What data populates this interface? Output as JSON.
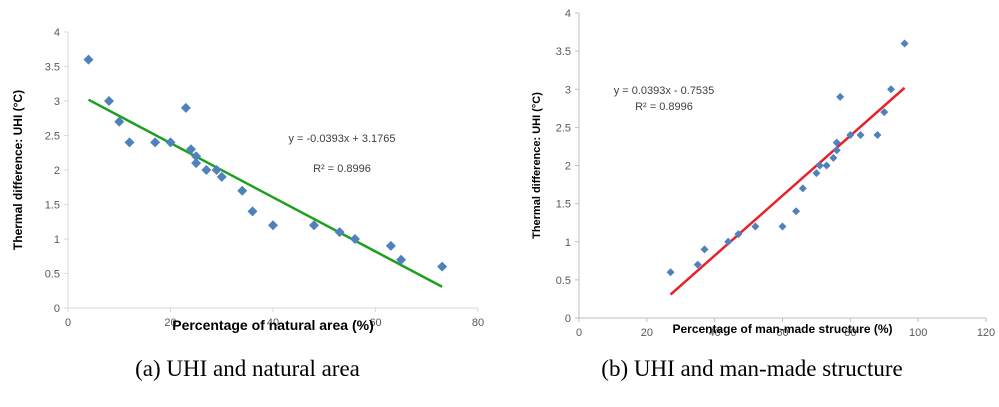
{
  "chart_data": [
    {
      "type": "scatter",
      "caption": "(a) UHI and natural area",
      "xlabel": "Percentage of natural area (%)",
      "ylabel": "Thermal difference: UHI (°C)",
      "xlim": [
        0,
        80
      ],
      "ylim": [
        0,
        4
      ],
      "xticks": [
        "0",
        "20",
        "40",
        "60",
        "80"
      ],
      "yticks": [
        "0",
        "0.5",
        "1",
        "1.5",
        "2",
        "2.5",
        "3",
        "3.5",
        "4"
      ],
      "grid": false,
      "marker_color": "#4F81BD",
      "trendline_color": "#1EA01E",
      "trendline": {
        "slope": -0.0393,
        "intercept": 3.1765,
        "x_range": [
          4,
          73
        ]
      },
      "equation": "y = -0.0393x + 3.1765",
      "r2": "R² = 0.8996",
      "points": [
        [
          4,
          3.6
        ],
        [
          8,
          3.0
        ],
        [
          10,
          2.7
        ],
        [
          12,
          2.4
        ],
        [
          17,
          2.4
        ],
        [
          20,
          2.4
        ],
        [
          23,
          2.9
        ],
        [
          24,
          2.3
        ],
        [
          25,
          2.2
        ],
        [
          25,
          2.1
        ],
        [
          27,
          2.0
        ],
        [
          29,
          2.0
        ],
        [
          30,
          1.9
        ],
        [
          34,
          1.7
        ],
        [
          36,
          1.4
        ],
        [
          40,
          1.2
        ],
        [
          48,
          1.2
        ],
        [
          53,
          1.1
        ],
        [
          56,
          1.0
        ],
        [
          63,
          0.9
        ],
        [
          65,
          0.7
        ],
        [
          73,
          0.6
        ]
      ]
    },
    {
      "type": "scatter",
      "caption": "(b) UHI and man-made structure",
      "xlabel": "Percentage of man-made structure (%)",
      "ylabel": "Thermal difference: UHI (°C)",
      "xlim": [
        0,
        120
      ],
      "ylim": [
        0,
        4
      ],
      "xticks": [
        "0",
        "20",
        "40",
        "60",
        "80",
        "100",
        "120"
      ],
      "yticks": [
        "0",
        "0.5",
        "1",
        "1.5",
        "2",
        "2.5",
        "3",
        "3.5",
        "4"
      ],
      "grid": false,
      "marker_color": "#4F81BD",
      "trendline_color": "#E8202A",
      "trendline": {
        "slope": 0.0393,
        "intercept": -0.7535,
        "x_range": [
          27,
          96
        ]
      },
      "equation": "y = 0.0393x - 0.7535",
      "r2": "R² = 0.8996",
      "points": [
        [
          27,
          0.6
        ],
        [
          35,
          0.7
        ],
        [
          37,
          0.9
        ],
        [
          44,
          1.0
        ],
        [
          47,
          1.1
        ],
        [
          52,
          1.2
        ],
        [
          60,
          1.2
        ],
        [
          64,
          1.4
        ],
        [
          66,
          1.7
        ],
        [
          70,
          1.9
        ],
        [
          71,
          2.0
        ],
        [
          73,
          2.0
        ],
        [
          75,
          2.1
        ],
        [
          76,
          2.2
        ],
        [
          76,
          2.3
        ],
        [
          77,
          2.9
        ],
        [
          80,
          2.4
        ],
        [
          83,
          2.4
        ],
        [
          88,
          2.4
        ],
        [
          90,
          2.7
        ],
        [
          92,
          3.0
        ],
        [
          96,
          3.6
        ]
      ]
    }
  ]
}
